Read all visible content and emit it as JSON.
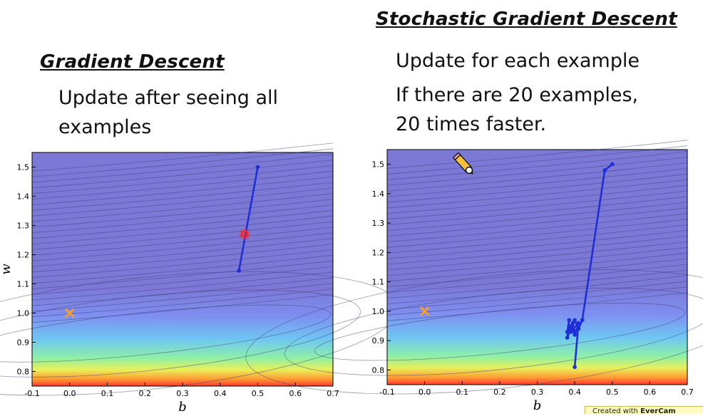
{
  "left": {
    "heading": "Gradient Descent",
    "lines": [
      "Update after seeing all",
      "examples"
    ]
  },
  "right": {
    "heading": "Stochastic Gradient Descent",
    "lines": [
      "Update for each example",
      "If there are 20 examples,",
      "20 times faster."
    ]
  },
  "badge": {
    "prefix": "Created with ",
    "brand": "EverCam"
  },
  "colors": {
    "path": "#1f2ed6",
    "target": "#ffa020",
    "highlight": "#ff2020"
  },
  "chart_data": [
    {
      "type": "line",
      "title": "",
      "xlabel": "b",
      "ylabel": "w",
      "xlim": [
        -0.1,
        0.7
      ],
      "ylim": [
        0.75,
        1.55
      ],
      "xticks": [
        -0.1,
        0.0,
        0.1,
        0.2,
        0.3,
        0.4,
        0.5,
        0.6,
        0.7
      ],
      "yticks": [
        0.8,
        0.9,
        1.0,
        1.1,
        1.2,
        1.3,
        1.4,
        1.5
      ],
      "background": "loss contour heatmap",
      "target": {
        "x": 0.0,
        "y": 1.0
      },
      "series": [
        {
          "points": [
            [
              0.5,
              1.5
            ],
            [
              0.45,
              1.145
            ]
          ]
        }
      ],
      "highlight": {
        "x": 0.465,
        "y": 1.27
      }
    },
    {
      "type": "line",
      "title": "",
      "xlabel": "b",
      "ylabel": "",
      "xlim": [
        -0.1,
        0.7
      ],
      "ylim": [
        0.75,
        1.55
      ],
      "xticks": [
        -0.1,
        0.0,
        0.1,
        0.2,
        0.3,
        0.4,
        0.5,
        0.6,
        0.7
      ],
      "yticks": [
        0.8,
        0.9,
        1.0,
        1.1,
        1.2,
        1.3,
        1.4,
        1.5
      ],
      "background": "loss contour heatmap",
      "target": {
        "x": 0.0,
        "y": 1.0
      },
      "series": [
        {
          "points": [
            [
              0.5,
              1.5
            ],
            [
              0.48,
              1.48
            ],
            [
              0.42,
              0.97
            ],
            [
              0.41,
              0.94
            ],
            [
              0.4,
              0.97
            ],
            [
              0.39,
              0.95
            ],
            [
              0.38,
              0.93
            ],
            [
              0.385,
              0.97
            ],
            [
              0.38,
              0.91
            ],
            [
              0.39,
              0.94
            ],
            [
              0.4,
              0.93
            ],
            [
              0.41,
              0.95
            ],
            [
              0.4,
              0.92
            ],
            [
              0.395,
              0.96
            ],
            [
              0.385,
              0.94
            ],
            [
              0.39,
              0.93
            ],
            [
              0.41,
              0.96
            ],
            [
              0.4,
              0.81
            ]
          ]
        }
      ]
    }
  ]
}
